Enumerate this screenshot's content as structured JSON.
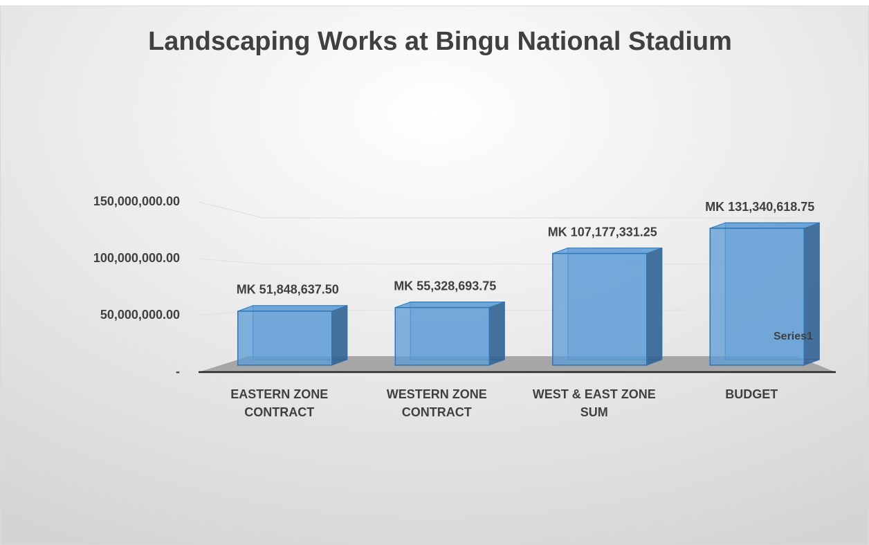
{
  "chart_data": {
    "type": "bar3d",
    "title": "Landscaping Works at Bingu National Stadium",
    "categories": [
      "EASTERN ZONE CONTRACT",
      "WESTERN ZONE CONTRACT",
      "WEST & EAST ZONE SUM",
      "BUDGET"
    ],
    "series": [
      {
        "name": "Series1",
        "color": "#5b9bd5",
        "values": [
          51848637.5,
          55328693.75,
          107177331.25,
          131340618.75
        ],
        "value_labels": [
          "MK 51,848,637.50",
          "MK 55,328,693.75",
          "MK 107,177,331.25",
          "MK 131,340,618.75"
        ]
      }
    ],
    "ylim": [
      0,
      150000000
    ],
    "yticks": [
      {
        "value": 0,
        "label": "-"
      },
      {
        "value": 50000000,
        "label": "50,000,000.00"
      },
      {
        "value": 100000000,
        "label": "100,000,000.00"
      },
      {
        "value": 150000000,
        "label": "150,000,000.00"
      }
    ],
    "grid": true,
    "legend": "right"
  }
}
